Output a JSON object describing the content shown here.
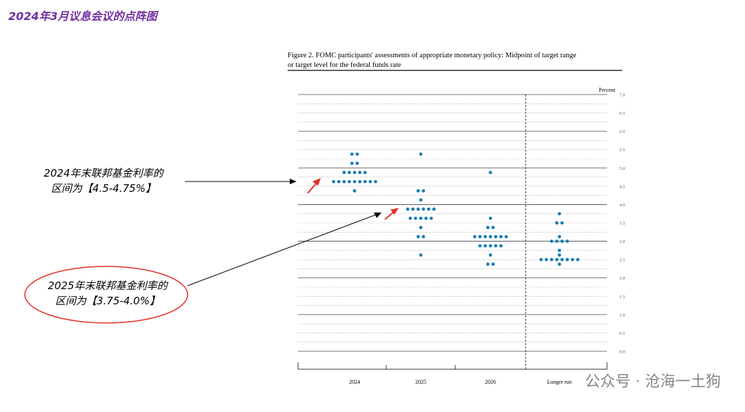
{
  "chart_data": {
    "type": "dot",
    "header": "2024年3月议息会议的点阵图",
    "title": [
      "Figure 2.  FOMC participants' assessments of appropriate monetary policy:  Midpoint of target range",
      "or target level for the federal funds rate"
    ],
    "ylabel": "Percent",
    "categories": [
      "2024",
      "2025",
      "2026",
      "Longer run"
    ],
    "values": [
      [
        5.375,
        5.375,
        5.125,
        5.125,
        4.875,
        4.875,
        4.875,
        4.875,
        4.875,
        4.625,
        4.625,
        4.625,
        4.625,
        4.625,
        4.625,
        4.625,
        4.625,
        4.625,
        4.375
      ],
      [
        5.375,
        4.375,
        4.375,
        4.125,
        3.875,
        3.875,
        3.875,
        3.875,
        3.875,
        3.875,
        3.625,
        3.625,
        3.625,
        3.625,
        3.625,
        3.375,
        3.125,
        3.125,
        2.625
      ],
      [
        4.875,
        3.625,
        3.375,
        3.375,
        3.125,
        3.125,
        3.125,
        3.125,
        3.125,
        3.125,
        3.125,
        2.875,
        2.875,
        2.875,
        2.875,
        2.875,
        2.625,
        2.375,
        2.375
      ],
      [
        3.75,
        3.5,
        3.5,
        3.125,
        3.0,
        3.0,
        3.0,
        3.0,
        2.75,
        2.625,
        2.5,
        2.5,
        2.5,
        2.5,
        2.5,
        2.5,
        2.5,
        2.5,
        2.375
      ]
    ],
    "color": "#1b7db0",
    "ylim": [
      0,
      7
    ],
    "yticks": [
      {
        "value": 0,
        "label": "0.0"
      },
      {
        "value": 0.5,
        "label": "0.5"
      },
      {
        "value": 1,
        "label": "1.0"
      },
      {
        "value": 1.5,
        "label": "1.5"
      },
      {
        "value": 2,
        "label": "2.0"
      },
      {
        "value": 2.5,
        "label": "2.5"
      },
      {
        "value": 3,
        "label": "3.0"
      },
      {
        "value": 3.5,
        "label": "3.5"
      },
      {
        "value": 4,
        "label": "4.0"
      },
      {
        "value": 4.5,
        "label": "4.5"
      },
      {
        "value": 5,
        "label": "5.0"
      },
      {
        "value": 5.5,
        "label": "5.5"
      },
      {
        "value": 6,
        "label": "6.0"
      },
      {
        "value": 6.5,
        "label": "6.5"
      },
      {
        "value": 7,
        "label": "7.0"
      }
    ],
    "minor_yticks": [
      0.25,
      0.75,
      1.25,
      1.75,
      2.25,
      2.75,
      3.25,
      3.75,
      4.25,
      4.75,
      5.25,
      5.75,
      6.25,
      6.75
    ],
    "grid": true,
    "annotations": [
      {
        "lines": [
          "2024年末联邦基金利率的",
          "区间为【4.5-4.75%】"
        ]
      },
      {
        "lines": [
          "2025年末联邦基金利率的",
          "区间为【3.75-4.0%】"
        ]
      }
    ],
    "watermark": "公众号 · 沧海一土狗"
  }
}
